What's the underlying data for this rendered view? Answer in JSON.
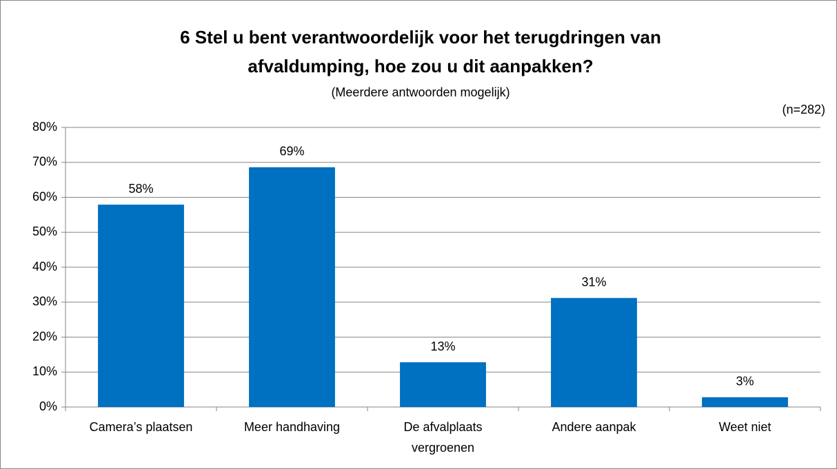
{
  "chart_data": {
    "type": "bar",
    "title": [
      "6 Stel u bent verantwoordelijk voor het terugdringen van",
      "afvaldumping, hoe zou u dit aanpakken?"
    ],
    "subtitle": "(Meerdere antwoorden mogelijk)",
    "annotation": "(n=282)",
    "categories": [
      "Camera’s plaatsen",
      "Meer handhaving",
      "De afvalplaats vergroenen",
      "Andere aanpak",
      "Weet niet"
    ],
    "values": [
      57.9,
      68.6,
      12.8,
      31.2,
      2.8
    ],
    "value_labels": [
      "58%",
      "69%",
      "13%",
      "31%",
      "3%"
    ],
    "color": "#0070c0",
    "ylim": [
      0,
      80
    ],
    "yticks": [
      {
        "value": 0,
        "label": "0%"
      },
      {
        "value": 10,
        "label": "10%"
      },
      {
        "value": 20,
        "label": "20%"
      },
      {
        "value": 30,
        "label": "30%"
      },
      {
        "value": 40,
        "label": "40%"
      },
      {
        "value": 50,
        "label": "50%"
      },
      {
        "value": 60,
        "label": "60%"
      },
      {
        "value": 70,
        "label": "70%"
      },
      {
        "value": 80,
        "label": "80%"
      }
    ],
    "grid": true
  }
}
